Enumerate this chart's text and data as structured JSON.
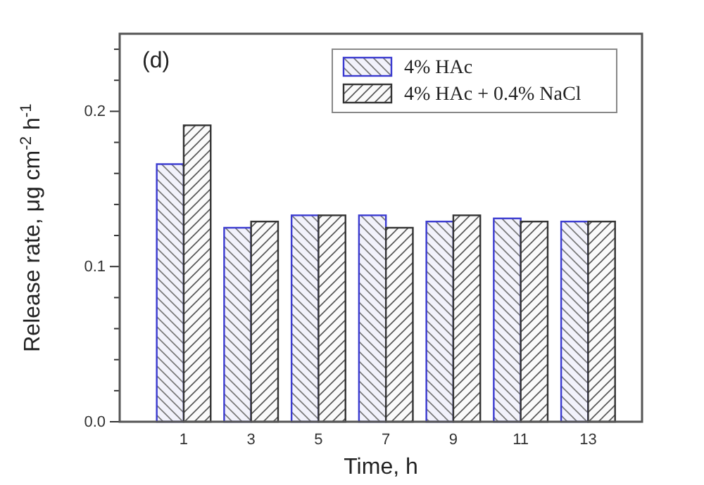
{
  "chart_data": {
    "type": "bar",
    "xlabel": "Time, h",
    "ylabel": "Release rate, μg cm$^{-2}$ h$^{-1}$",
    "annotations": [
      "(d)"
    ],
    "x": [
      1,
      3,
      5,
      7,
      9,
      11,
      13
    ],
    "xlim": [
      -0.9,
      14.6
    ],
    "xticks": [
      1,
      3,
      5,
      7,
      9,
      11,
      13
    ],
    "series": [
      {
        "name": "4% HAc",
        "color": "#3a3ad0",
        "values": [
          0.166,
          0.125,
          0.133,
          0.133,
          0.129,
          0.131,
          0.129
        ]
      },
      {
        "name": "4% HAc + 0.4% NaCl",
        "color": "#333333",
        "values": [
          0.191,
          0.129,
          0.133,
          0.125,
          0.133,
          0.129,
          0.129
        ]
      }
    ],
    "ylim": [
      0,
      0.25
    ],
    "yticks": [
      {
        "value": 0,
        "label": "0.0"
      },
      {
        "value": 0.02,
        "label": null
      },
      {
        "value": 0.04,
        "label": null
      },
      {
        "value": 0.06,
        "label": null
      },
      {
        "value": 0.08,
        "label": null
      },
      {
        "value": 0.1,
        "label": "0.1"
      },
      {
        "value": 0.12,
        "label": null
      },
      {
        "value": 0.14,
        "label": null
      },
      {
        "value": 0.16,
        "label": null
      },
      {
        "value": 0.18,
        "label": null
      },
      {
        "value": 0.2,
        "label": "0.2"
      },
      {
        "value": 0.22,
        "label": null
      },
      {
        "value": 0.24,
        "label": null
      }
    ],
    "legend": "top right",
    "grid": false
  }
}
